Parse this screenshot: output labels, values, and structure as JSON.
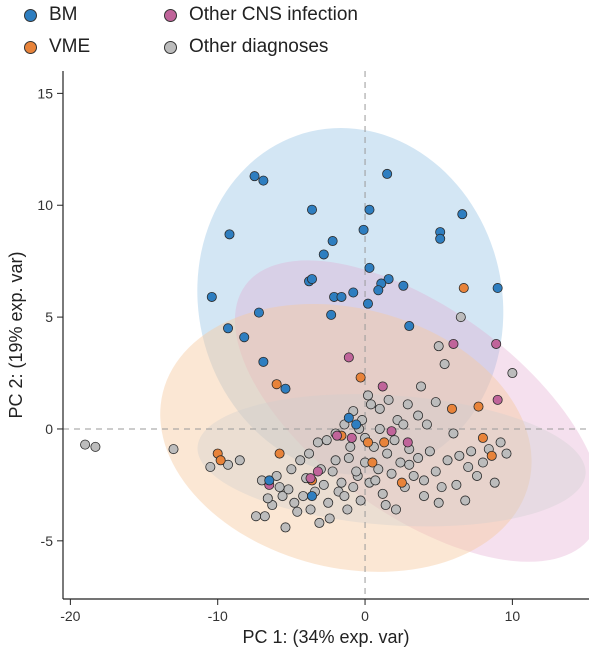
{
  "chart_data": {
    "type": "scatter",
    "xlabel": "PC 1: (34% exp. var)",
    "ylabel": "PC 2: (19% exp. var)",
    "xlim": [
      -20.5,
      15.2
    ],
    "ylim": [
      -7.6,
      16.0
    ],
    "xticks": [
      -20,
      -10,
      0,
      10
    ],
    "yticks": [
      -5,
      0,
      5,
      10,
      15
    ],
    "reference_lines": {
      "x": 0,
      "y": 0,
      "style": "dashed"
    },
    "legend": [
      {
        "label": "BM",
        "color": "#2e7ec0"
      },
      {
        "label": "Other CNS infection",
        "color": "#c0649a"
      },
      {
        "label": "VME",
        "color": "#e8833a"
      },
      {
        "label": "Other diagnoses",
        "color": "#bcbcbc"
      }
    ],
    "ellipses": [
      {
        "series": "BM",
        "cx": -1.0,
        "cy": 5.7,
        "rx": 10.3,
        "ry": 7.8,
        "angle": 13,
        "color": "#9ec8e6",
        "opacity": 0.45
      },
      {
        "series": "Other CNS infection",
        "cx": 3.6,
        "cy": 0.8,
        "rx": 14.5,
        "ry": 4.6,
        "angle": -36,
        "color": "#e2a6cd",
        "opacity": 0.35
      },
      {
        "series": "VME",
        "cx": -1.3,
        "cy": -0.4,
        "rx": 12.8,
        "ry": 5.8,
        "angle": -14,
        "color": "#f6c9a0",
        "opacity": 0.45
      },
      {
        "series": "Other diagnoses",
        "cx": 1.8,
        "cy": -1.4,
        "rx": 13.2,
        "ry": 2.9,
        "angle": -4,
        "color": "#cfcfcf",
        "opacity": 0.35
      }
    ],
    "series": [
      {
        "name": "Other diagnoses",
        "color": "#bcbcbc",
        "points": [
          [
            -19.0,
            -0.7
          ],
          [
            -18.3,
            -0.8
          ],
          [
            -13.0,
            -0.9
          ],
          [
            -10.5,
            -1.7
          ],
          [
            -9.3,
            -1.6
          ],
          [
            -8.5,
            -1.4
          ],
          [
            -7.0,
            -2.3
          ],
          [
            -6.8,
            -3.9
          ],
          [
            -6.3,
            -3.4
          ],
          [
            -5.6,
            -3.0
          ],
          [
            -5.2,
            -2.7
          ],
          [
            -4.8,
            -3.3
          ],
          [
            -4.2,
            -3.0
          ],
          [
            -3.7,
            -3.6
          ],
          [
            -3.1,
            -4.2
          ],
          [
            -2.8,
            -2.5
          ],
          [
            -2.5,
            -3.3
          ],
          [
            -2.2,
            -1.9
          ],
          [
            -1.8,
            -2.8
          ],
          [
            -1.4,
            -3.0
          ],
          [
            -1.1,
            -1.3
          ],
          [
            -0.8,
            -2.6
          ],
          [
            -0.5,
            -2.1
          ],
          [
            -0.3,
            -3.2
          ],
          [
            0.0,
            -1.5
          ],
          [
            0.3,
            -2.4
          ],
          [
            0.6,
            -0.8
          ],
          [
            0.9,
            -1.8
          ],
          [
            1.2,
            -2.9
          ],
          [
            1.5,
            -1.1
          ],
          [
            1.8,
            -2.0
          ],
          [
            2.1,
            -3.6
          ],
          [
            2.4,
            -1.5
          ],
          [
            2.7,
            -2.6
          ],
          [
            3.0,
            -0.9
          ],
          [
            3.3,
            -2.1
          ],
          [
            3.6,
            -1.3
          ],
          [
            4.0,
            -2.3
          ],
          [
            4.4,
            -1.0
          ],
          [
            4.8,
            -1.9
          ],
          [
            5.2,
            -2.6
          ],
          [
            5.6,
            -1.4
          ],
          [
            6.0,
            -0.2
          ],
          [
            6.4,
            -1.2
          ],
          [
            6.8,
            -3.2
          ],
          [
            7.2,
            -1.0
          ],
          [
            7.6,
            -2.1
          ],
          [
            8.0,
            -1.5
          ],
          [
            8.4,
            -0.9
          ],
          [
            8.8,
            -2.4
          ],
          [
            9.2,
            -0.6
          ],
          [
            9.6,
            -1.1
          ],
          [
            10.0,
            2.5
          ],
          [
            6.5,
            5.0
          ],
          [
            5.0,
            3.7
          ],
          [
            5.4,
            2.9
          ],
          [
            4.8,
            1.2
          ],
          [
            3.6,
            0.6
          ],
          [
            2.9,
            1.1
          ],
          [
            2.2,
            0.4
          ],
          [
            1.6,
            1.3
          ],
          [
            1.0,
            0.9
          ],
          [
            0.4,
            1.1
          ],
          [
            -0.2,
            0.4
          ],
          [
            -0.8,
            0.8
          ],
          [
            -1.4,
            0.2
          ],
          [
            -2.0,
            -0.2
          ],
          [
            -2.6,
            -0.5
          ],
          [
            -3.2,
            -0.6
          ],
          [
            -3.8,
            -1.1
          ],
          [
            -4.4,
            -1.4
          ],
          [
            -5.0,
            -1.8
          ],
          [
            -5.8,
            -2.6
          ],
          [
            -6.6,
            -3.1
          ],
          [
            -7.4,
            -3.9
          ],
          [
            -4.0,
            -2.2
          ],
          [
            -3.0,
            -1.8
          ],
          [
            -2.0,
            -1.4
          ],
          [
            -1.0,
            -0.8
          ],
          [
            0.0,
            -0.4
          ],
          [
            1.0,
            0.0
          ],
          [
            2.0,
            -0.5
          ],
          [
            3.0,
            -1.6
          ],
          [
            4.0,
            -3.0
          ],
          [
            -0.6,
            -1.9
          ],
          [
            0.7,
            -2.3
          ],
          [
            1.4,
            -3.4
          ],
          [
            -1.6,
            -2.4
          ],
          [
            -2.4,
            -4.0
          ],
          [
            -3.4,
            -2.8
          ],
          [
            -4.6,
            -3.7
          ],
          [
            -5.4,
            -4.4
          ],
          [
            -6.0,
            -2.1
          ],
          [
            5.0,
            -3.3
          ],
          [
            6.2,
            -2.5
          ],
          [
            7.0,
            -1.7
          ],
          [
            3.8,
            1.9
          ],
          [
            4.2,
            0.2
          ],
          [
            0.2,
            1.5
          ],
          [
            -1.2,
            -3.6
          ],
          [
            2.6,
            0.2
          ],
          [
            -0.4,
            0.0
          ]
        ]
      },
      {
        "name": "VME",
        "color": "#e8833a",
        "points": [
          [
            -10.0,
            -1.1
          ],
          [
            -9.8,
            -1.4
          ],
          [
            -6.0,
            2.0
          ],
          [
            -5.8,
            -1.1
          ],
          [
            -3.6,
            -2.3
          ],
          [
            -1.6,
            -0.3
          ],
          [
            -0.3,
            2.3
          ],
          [
            0.2,
            -0.6
          ],
          [
            0.5,
            -1.5
          ],
          [
            1.3,
            -0.6
          ],
          [
            2.5,
            -2.4
          ],
          [
            5.9,
            0.9
          ],
          [
            6.7,
            6.3
          ],
          [
            7.7,
            1.0
          ],
          [
            8.0,
            -0.4
          ],
          [
            8.6,
            -1.2
          ]
        ]
      },
      {
        "name": "Other CNS infection",
        "color": "#c0649a",
        "points": [
          [
            -6.5,
            -2.5
          ],
          [
            -3.7,
            -2.2
          ],
          [
            -3.2,
            -1.9
          ],
          [
            -1.9,
            -0.3
          ],
          [
            -1.1,
            3.2
          ],
          [
            -0.9,
            -0.4
          ],
          [
            1.2,
            1.9
          ],
          [
            1.8,
            -0.1
          ],
          [
            2.9,
            -0.6
          ],
          [
            6.0,
            3.8
          ],
          [
            8.9,
            3.8
          ],
          [
            9.0,
            1.3
          ]
        ]
      },
      {
        "name": "BM",
        "color": "#2e7ec0",
        "points": [
          [
            -7.5,
            11.3
          ],
          [
            -6.9,
            11.1
          ],
          [
            -3.6,
            9.8
          ],
          [
            1.5,
            11.4
          ],
          [
            0.3,
            9.8
          ],
          [
            -9.2,
            8.7
          ],
          [
            -2.2,
            8.4
          ],
          [
            -2.8,
            7.8
          ],
          [
            -0.1,
            8.9
          ],
          [
            5.1,
            8.8
          ],
          [
            5.1,
            8.5
          ],
          [
            6.6,
            9.6
          ],
          [
            0.3,
            7.2
          ],
          [
            1.6,
            6.7
          ],
          [
            1.1,
            6.5
          ],
          [
            0.9,
            6.2
          ],
          [
            -3.8,
            6.6
          ],
          [
            -3.6,
            6.7
          ],
          [
            -2.1,
            5.9
          ],
          [
            -1.6,
            5.9
          ],
          [
            -0.8,
            6.1
          ],
          [
            -2.3,
            5.1
          ],
          [
            0.2,
            5.6
          ],
          [
            2.6,
            6.4
          ],
          [
            9.0,
            6.3
          ],
          [
            -10.4,
            5.9
          ],
          [
            -9.3,
            4.5
          ],
          [
            -7.2,
            5.2
          ],
          [
            -8.2,
            4.1
          ],
          [
            -6.9,
            3.0
          ],
          [
            -5.4,
            1.8
          ],
          [
            3.0,
            4.6
          ],
          [
            -1.1,
            0.5
          ],
          [
            -0.6,
            0.2
          ],
          [
            -6.5,
            -2.3
          ],
          [
            -3.6,
            -3.0
          ]
        ]
      }
    ]
  }
}
